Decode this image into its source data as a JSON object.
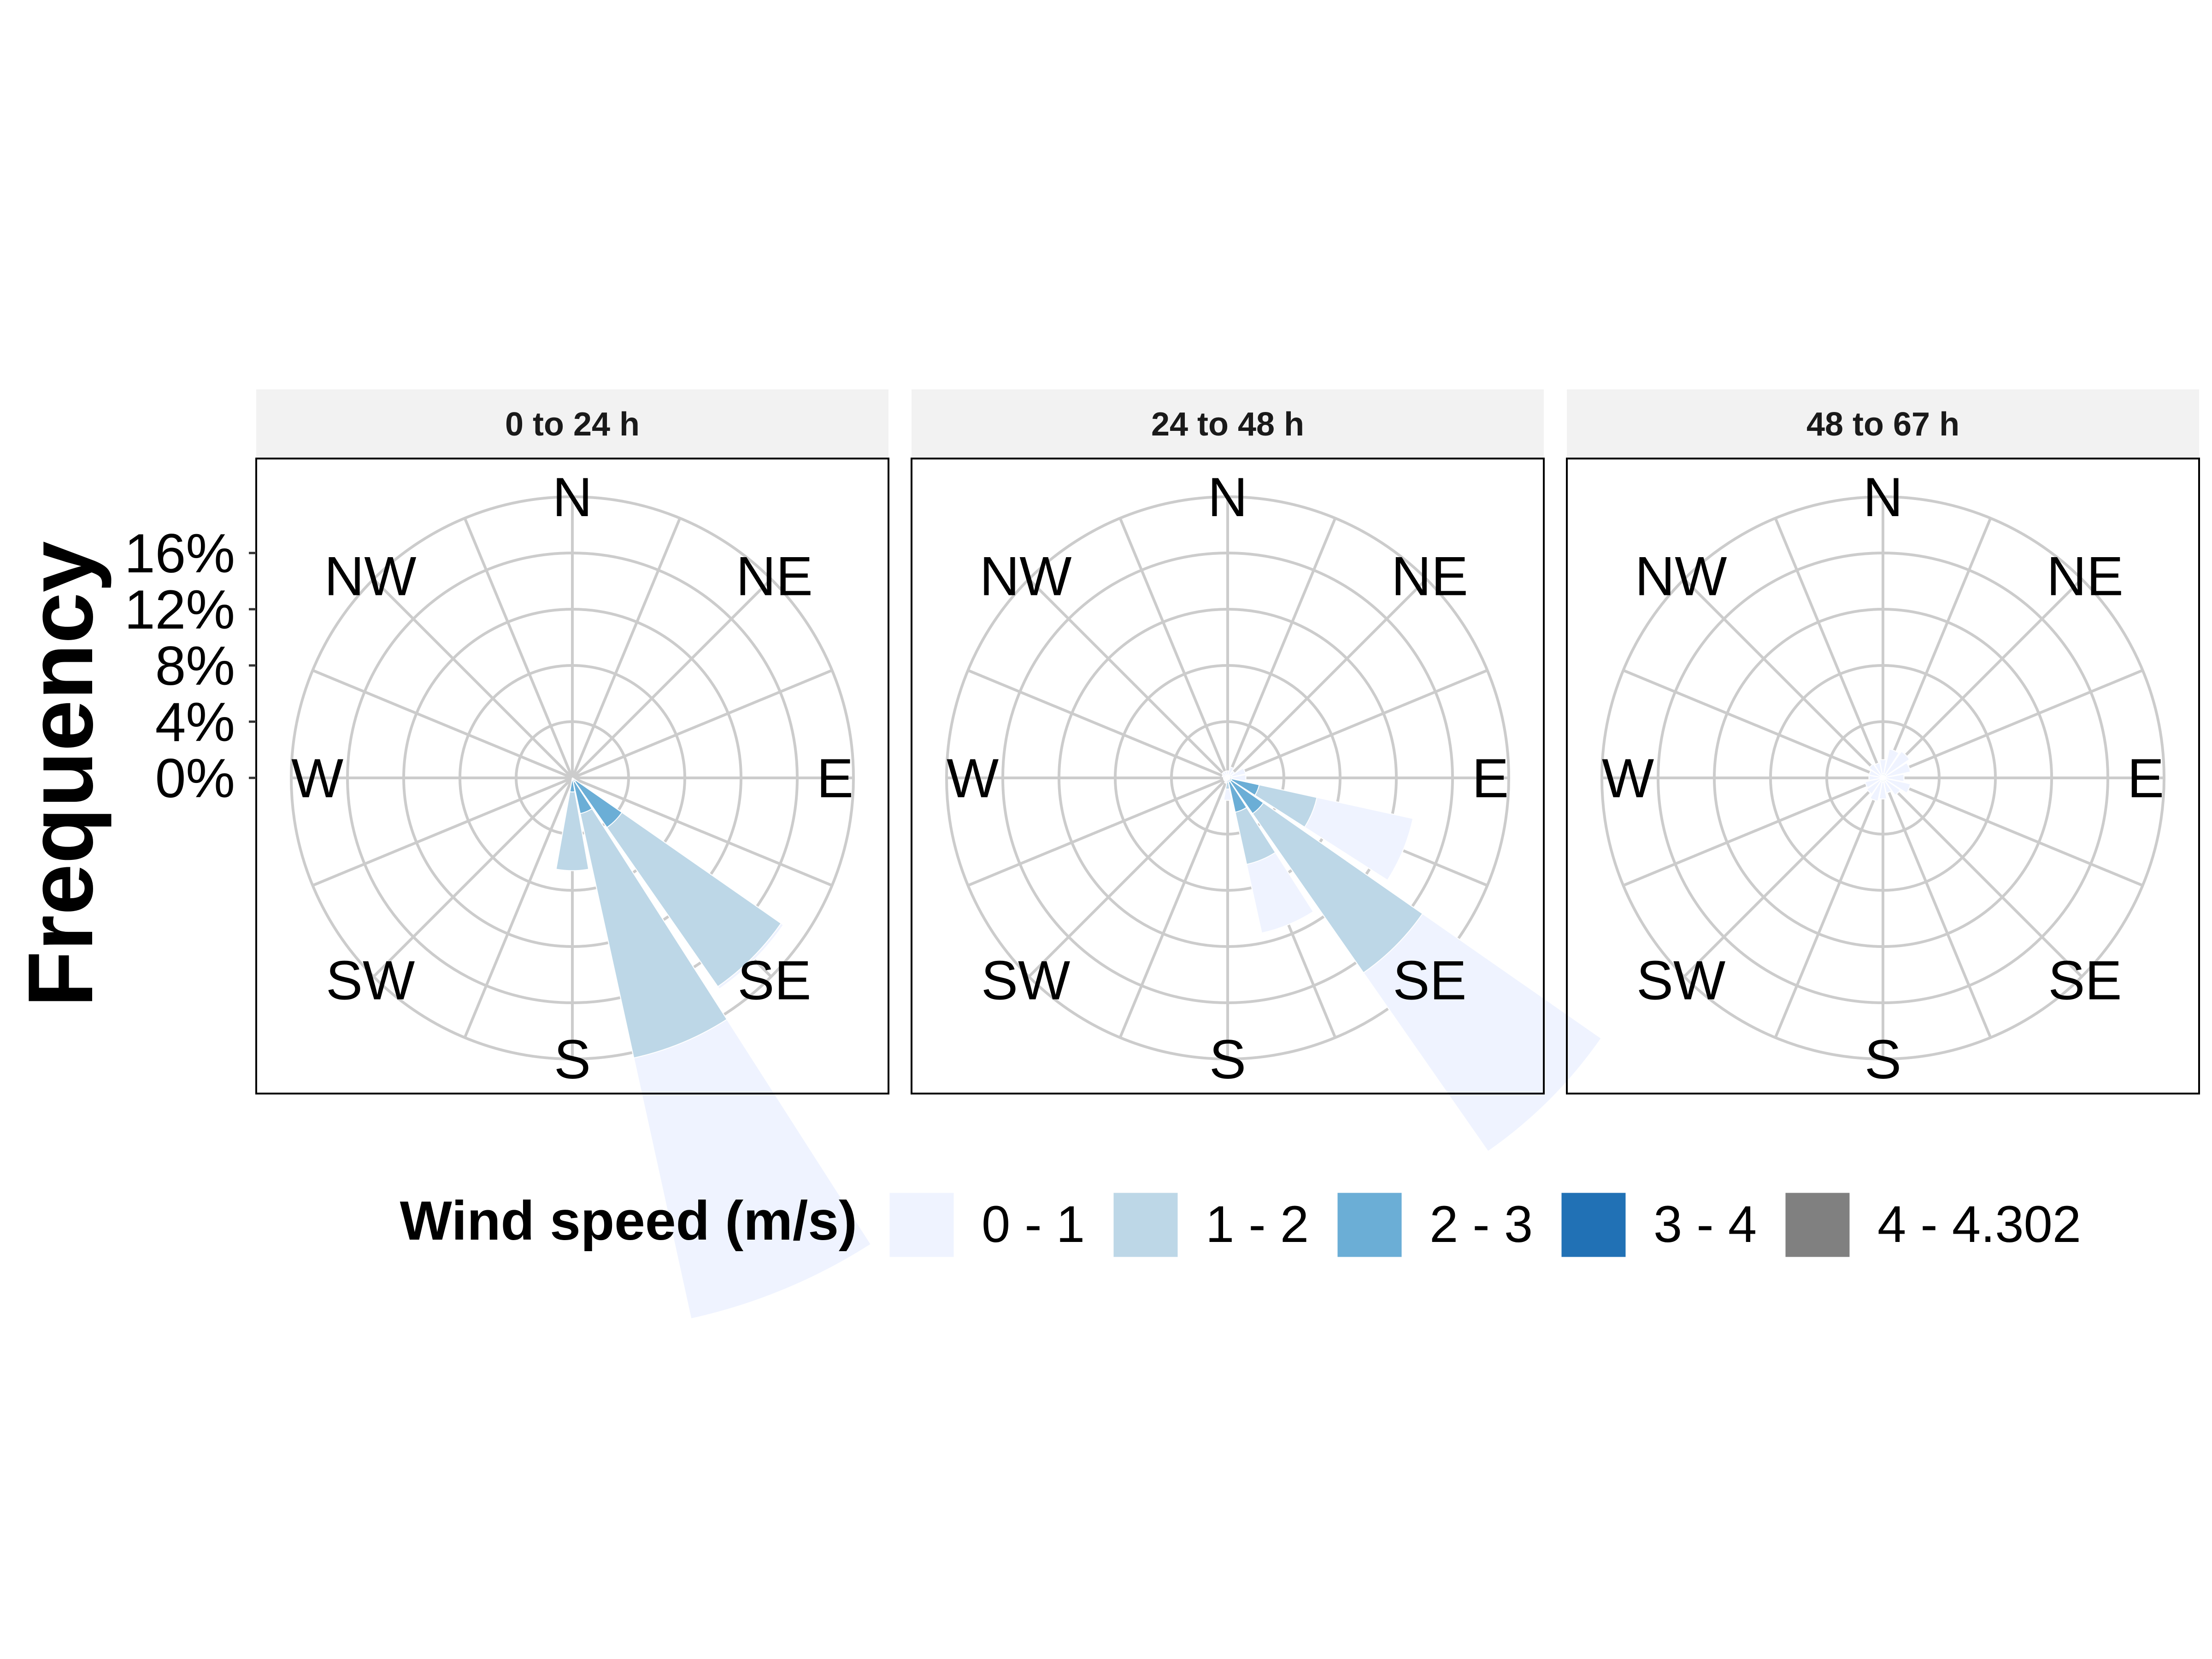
{
  "chart_data": {
    "type": "wind-rose",
    "ylabel": "Frequency",
    "r_ticks": [
      0,
      4,
      8,
      12,
      16
    ],
    "r_tick_labels": [
      "0%",
      "4%",
      "8%",
      "12%",
      "16%"
    ],
    "r_max": 20,
    "directions": [
      "N",
      "NNE",
      "NE",
      "ENE",
      "E",
      "ESE",
      "SE",
      "SSE",
      "S",
      "SSW",
      "SW",
      "WSW",
      "W",
      "WNW",
      "NW",
      "NNW"
    ],
    "compass_labels": [
      {
        "label": "N",
        "angle": 0
      },
      {
        "label": "NE",
        "angle": 45
      },
      {
        "label": "E",
        "angle": 90
      },
      {
        "label": "SE",
        "angle": 135
      },
      {
        "label": "S",
        "angle": 180
      },
      {
        "label": "SW",
        "angle": 225
      },
      {
        "label": "W",
        "angle": 270
      },
      {
        "label": "NW",
        "angle": 315
      }
    ],
    "legend": {
      "title": "Wind speed (m/s)",
      "bins": [
        {
          "label": "0 - 1",
          "color": "#eff3ff"
        },
        {
          "label": "1 - 2",
          "color": "#bdd7e7"
        },
        {
          "label": "2 - 3",
          "color": "#6baed6"
        },
        {
          "label": "3 - 4",
          "color": "#2171b5"
        },
        {
          "label": "4 - 4.302",
          "color": "#808080"
        }
      ]
    },
    "panels": [
      {
        "title": "0 to 24 h",
        "series": [
          {
            "name": "4 - 4.302",
            "values": [
              0,
              0,
              0,
              0,
              0,
              0,
              0,
              0,
              0,
              0,
              0,
              0,
              0,
              0,
              0,
              0
            ]
          },
          {
            "name": "3 - 4",
            "values": [
              0,
              0,
              0,
              0,
              0,
              0,
              0.3,
              0.3,
              0,
              0,
              0,
              0,
              0,
              0,
              0,
              0
            ]
          },
          {
            "name": "2 - 3",
            "values": [
              0,
              0,
              0,
              0,
              0,
              0,
              4.0,
              2.3,
              1.0,
              0,
              0,
              0,
              0,
              0,
              0,
              0
            ]
          },
          {
            "name": "1 - 2",
            "values": [
              0,
              0,
              0,
              0,
              0,
              0,
              13.8,
              17.8,
              5.6,
              0,
              0,
              0,
              0,
              0,
              0,
              0
            ]
          },
          {
            "name": "0 - 1",
            "values": [
              0,
              0,
              0,
              0,
              0,
              0,
              0.2,
              19.0,
              0,
              0,
              0,
              0,
              0,
              0,
              0,
              0
            ]
          }
        ]
      },
      {
        "title": "24 to 48 h",
        "series": [
          {
            "name": "4 - 4.302",
            "values": [
              0,
              0,
              0,
              0,
              0,
              0,
              0,
              0,
              0,
              0,
              0,
              0,
              0,
              0,
              0,
              0
            ]
          },
          {
            "name": "3 - 4",
            "values": [
              0,
              0,
              0,
              0,
              0,
              0.3,
              0.3,
              0.3,
              0,
              0,
              0,
              0,
              0,
              0,
              0,
              0
            ]
          },
          {
            "name": "2 - 3",
            "values": [
              0,
              0,
              0,
              0,
              0,
              2.0,
              2.8,
              2.2,
              0.3,
              0,
              0,
              0,
              0,
              0,
              0,
              0
            ]
          },
          {
            "name": "1 - 2",
            "values": [
              0,
              0,
              0,
              0.3,
              0.3,
              4.2,
              13.8,
              3.8,
              0.5,
              0,
              0,
              0,
              0,
              0,
              0,
              0
            ]
          },
          {
            "name": "0 - 1",
            "values": [
              0.5,
              0.8,
              0.6,
              1.0,
              1.0,
              7.0,
              15.5,
              5.0,
              0.8,
              0.4,
              0.3,
              0.3,
              0.3,
              0.4,
              0.5,
              0.5
            ]
          }
        ]
      },
      {
        "title": "48 to 67 h",
        "series": [
          {
            "name": "4 - 4.302",
            "values": [
              0,
              0,
              0,
              0,
              0,
              0,
              0,
              0,
              0,
              0,
              0,
              0,
              0,
              0,
              0,
              0
            ]
          },
          {
            "name": "3 - 4",
            "values": [
              0,
              0,
              0,
              0,
              0,
              0,
              0,
              0,
              0,
              0,
              0,
              0,
              0,
              0,
              0,
              0
            ]
          },
          {
            "name": "2 - 3",
            "values": [
              0,
              0,
              0,
              0,
              0,
              0,
              0,
              0,
              0,
              0,
              0,
              0,
              0,
              0,
              0,
              0
            ]
          },
          {
            "name": "1 - 2",
            "values": [
              0.3,
              0.3,
              0.3,
              0.2,
              0.2,
              0.2,
              0.3,
              0.3,
              0.3,
              0.3,
              0.2,
              0.2,
              0.2,
              0.2,
              0.2,
              0.2
            ]
          },
          {
            "name": "0 - 1",
            "values": [
              1.0,
              1.8,
              2.0,
              1.8,
              1.3,
              1.8,
              1.2,
              0.8,
              1.2,
              1.4,
              1.2,
              1.1,
              0.8,
              0.8,
              1.0,
              0.9
            ]
          }
        ]
      }
    ]
  }
}
